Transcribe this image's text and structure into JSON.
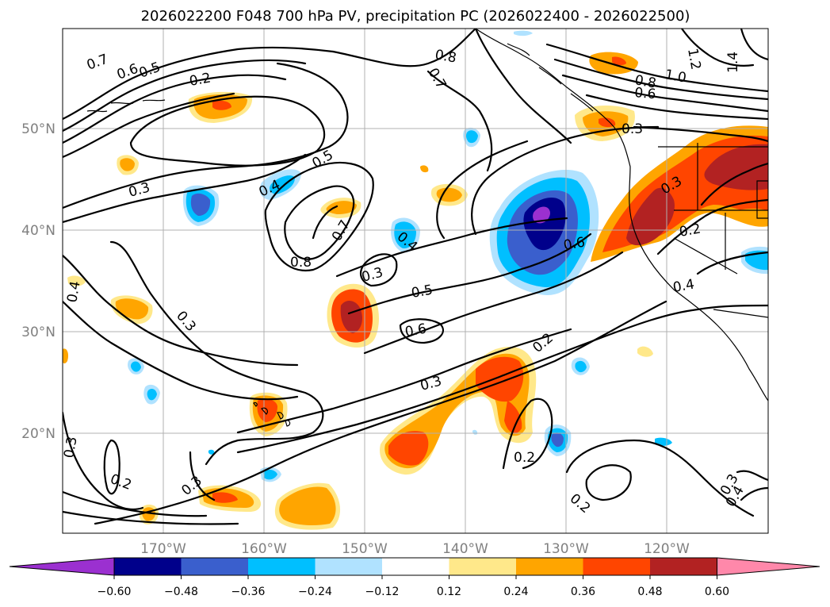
{
  "title": "2026022200 F048 700 hPa PV, precipitation PC (2026022400 - 2026022500)",
  "axes": {
    "lat_labels": [
      "50°N",
      "40°N",
      "30°N",
      "20°N"
    ],
    "lon_labels": [
      "170°W",
      "160°W",
      "150°W",
      "140°W",
      "130°W",
      "120°W"
    ]
  },
  "colorbar": {
    "ticks": [
      "−0.60",
      "−0.48",
      "−0.36",
      "−0.24",
      "−0.12",
      "0.12",
      "0.24",
      "0.36",
      "0.48",
      "0.60"
    ],
    "colors": [
      "#9b30d0",
      "#00008b",
      "#3a5fcd",
      "#00bfff",
      "#b0e2ff",
      "#ffffff",
      "#ffe88a",
      "#ffa500",
      "#ff4500",
      "#b22222",
      "#ff88aa"
    ]
  },
  "contour_labels": [
    "0.7",
    "0.6",
    "0.5",
    "0.2",
    "0.8",
    "0.7",
    "0.8",
    "1.0",
    "0.6",
    "1.4",
    "1.2",
    "0.3",
    "0.3",
    "0.4",
    "0.5",
    "0.7",
    "0.8",
    "0.4",
    "0.3",
    "0.5",
    "0.6",
    "0.6",
    "0.3",
    "0.2",
    "0.4",
    "0.4",
    "0.3",
    "0.2",
    "0.3",
    "0.2",
    "0.2",
    "0.3",
    "0.3",
    "0.4",
    "0.3",
    "0.2"
  ],
  "palette": {
    "purple": "#9b30d0",
    "navy": "#00008b",
    "blue": "#3a5fcd",
    "sky": "#00bfff",
    "lightblue": "#b0e2ff",
    "yellow": "#ffe88a",
    "orange": "#ffa500",
    "redorange": "#ff4500",
    "darkred": "#b22222",
    "pink": "#ff88aa"
  }
}
